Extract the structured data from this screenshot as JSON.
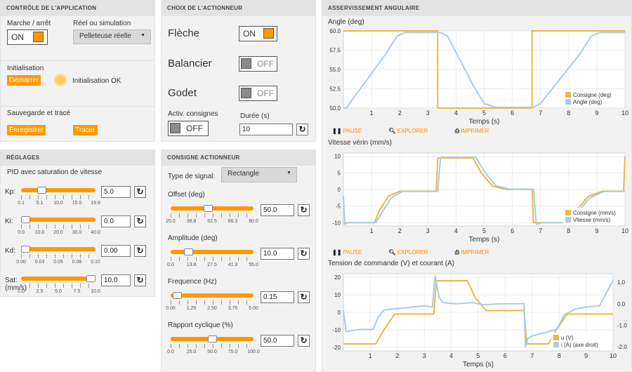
{
  "controle": {
    "title": "CONTRÔLE DE L'APPLICATION",
    "marche_label": "Marche / arrêt",
    "toggle_on": "ON",
    "reel_label": "Réel ou simulation",
    "reel_value": "Pelleteuse réelle",
    "init_label": "Initialisation",
    "demarrer": "Démarrer",
    "init_status": "Initialisation OK",
    "sauvegarde_label": "Sauvegarde et tracé",
    "enregistrer": "Enregistrer",
    "tracer": "Tracer"
  },
  "choix": {
    "title": "CHOIX DE L'ACTIONNEUR",
    "fleche": "Flèche",
    "fleche_state": "ON",
    "balancier": "Balancier",
    "balancier_state": "OFF",
    "godet": "Godet",
    "godet_state": "OFF",
    "activ_label": "Activ. consignes",
    "activ_state": "OFF",
    "duree_label": "Durée (s)",
    "duree_value": "10"
  },
  "reglages": {
    "title": "RÉGLAGES",
    "subtitle": "PID avec saturation de vitesse",
    "params": [
      {
        "label": "Kp:",
        "value": "5.0",
        "ticks": [
          "0.1",
          "5.1",
          "10.0",
          "15.0",
          "19.9"
        ],
        "level": 0.25
      },
      {
        "label": "Ki:",
        "value": "0.0",
        "ticks": [
          "0.0",
          "10.0",
          "20.0",
          "30.0",
          "40.0"
        ],
        "level": 0.0
      },
      {
        "label": "Kd:",
        "value": "0.00",
        "ticks": [
          "0.00",
          "0.03",
          "0.05",
          "0.08",
          "0.10"
        ],
        "level": 0.0
      },
      {
        "label": "Sat:",
        "label2": "(mm/s)",
        "value": "10.0",
        "ticks": [
          "0.0",
          "2.5",
          "5.0",
          "7.5",
          "10.0"
        ],
        "level": 1.0
      }
    ]
  },
  "consigne": {
    "title": "CONSIGNE ACTIONNEUR",
    "type_label": "Type de signal:",
    "type_value": "Rectangle",
    "params": [
      {
        "label": "Offset (deg)",
        "value": "50.0",
        "ticks": [
          "25.0",
          "38.8",
          "52.5",
          "66.3",
          "80.0"
        ],
        "level": 0.45
      },
      {
        "label": "Amplitude (deg)",
        "value": "10.0",
        "ticks": [
          "0.0",
          "13.8",
          "27.5",
          "41.3",
          "55.0"
        ],
        "level": 0.18
      },
      {
        "label": "Frequence (Hz)",
        "value": "0.15",
        "ticks": [
          "0.00",
          "1.25",
          "2.50",
          "3.75",
          "5.00"
        ],
        "level": 0.03
      },
      {
        "label": "Rapport cyclique (%)",
        "value": "50.0",
        "ticks": [
          "0.0",
          "25.0",
          "50.0",
          "75.0",
          "100.0"
        ],
        "level": 0.5
      }
    ]
  },
  "asserv": {
    "title": "ASSERVISSEMENT ANGULAIRE",
    "tools": {
      "pause": "PAUSE",
      "explorer": "EXPLORER",
      "imprimer": "IMPRIMER"
    }
  },
  "colors": {
    "orange": "#ff9800",
    "consigne": "#e8b84a",
    "mesure": "#a9cbe8"
  },
  "chart_data": [
    {
      "type": "line",
      "title": "Angle (deg)",
      "xlabel": "Temps (s)",
      "ylabel": "",
      "xlim": [
        0,
        10
      ],
      "ylim": [
        50,
        60
      ],
      "yticks": [
        "50.0",
        "52.5",
        "55.0",
        "57.5",
        "60.0"
      ],
      "xticks": [
        "1",
        "2",
        "3",
        "4",
        "5",
        "6",
        "7",
        "8",
        "9",
        "10"
      ],
      "legend": "bottom-right",
      "series": [
        {
          "name": "Consigne (deg)",
          "color": "#e8b84a",
          "x": [
            0,
            3.35,
            3.35,
            6.7,
            6.7,
            10
          ],
          "y": [
            60,
            60,
            50,
            50,
            60,
            60
          ]
        },
        {
          "name": "Angle (deg)",
          "color": "#a9cbe8",
          "x": [
            0,
            0.1,
            1.5,
            1.9,
            2.2,
            3.45,
            3.7,
            4.6,
            5.0,
            5.4,
            6.75,
            7.0,
            8.4,
            8.8,
            9.1,
            10
          ],
          "y": [
            50,
            50,
            57,
            59.3,
            59.8,
            59.8,
            59.3,
            53,
            50.6,
            50.1,
            50.1,
            50.6,
            57,
            59.3,
            59.8,
            59.8
          ]
        }
      ]
    },
    {
      "type": "line",
      "title": "Vitesse vérin (mm/s)",
      "xlabel": "Temps (s)",
      "ylabel": "",
      "xlim": [
        0,
        10
      ],
      "ylim": [
        -11,
        11
      ],
      "yticks": [
        "-10",
        "-5",
        "0",
        "5",
        "10"
      ],
      "xticks": [
        "1",
        "2",
        "3",
        "4",
        "5",
        "6",
        "7",
        "8",
        "9",
        "10"
      ],
      "legend": "bottom-right",
      "series": [
        {
          "name": "Consigne (mm/s)",
          "color": "#e8b84a",
          "x": [
            0,
            0.1,
            1.1,
            1.3,
            1.6,
            2.0,
            3.3,
            3.35,
            3.5,
            4.6,
            4.9,
            5.3,
            5.8,
            6.7,
            6.75,
            7.0,
            8.0,
            8.3,
            8.7,
            9.2,
            9.95,
            10
          ],
          "y": [
            -10,
            -10,
            -10,
            -6,
            -2,
            -0.5,
            -0.5,
            9.5,
            9.5,
            9.5,
            5,
            1,
            0,
            0,
            -10,
            -10,
            -10,
            -6,
            -2,
            -0.5,
            -0.5,
            10
          ]
        },
        {
          "name": "Vitesse (mm/s)",
          "color": "#a9cbe8",
          "x": [
            0,
            0.05,
            0.15,
            1.15,
            1.4,
            1.7,
            2.1,
            3.35,
            3.45,
            3.6,
            4.7,
            5.0,
            5.4,
            5.9,
            6.75,
            6.85,
            7.1,
            8.05,
            8.35,
            8.75,
            9.25,
            10
          ],
          "y": [
            -2,
            -10.5,
            -10,
            -10,
            -6.5,
            -2.5,
            -0.6,
            -0.6,
            9.8,
            9.7,
            9.7,
            5.5,
            1.2,
            0.1,
            0.1,
            -10.5,
            -10,
            -10,
            -6.5,
            -2.5,
            -0.6,
            -0.6
          ]
        }
      ]
    },
    {
      "type": "line",
      "title": "Tension de commande (V) et courant (A)",
      "xlabel": "Temps (s)",
      "ylabel": "",
      "xlim": [
        0,
        10
      ],
      "ylim": [
        -22,
        22
      ],
      "ylim_right": [
        -2.2,
        1.4
      ],
      "yticks": [
        "-20",
        "-10",
        "0",
        "10",
        "20"
      ],
      "yticks_right": [
        "-2.0",
        "-1.0",
        "0.0",
        "1.0"
      ],
      "xticks": [
        "1",
        "2",
        "3",
        "4",
        "5",
        "6",
        "7",
        "8",
        "9",
        "10"
      ],
      "legend": "bottom-right",
      "series": [
        {
          "name": "u (V)",
          "color": "#e8b84a",
          "axis": "left",
          "x": [
            0,
            0.1,
            1.2,
            1.5,
            1.9,
            3.35,
            3.45,
            4.6,
            4.9,
            5.3,
            6.7,
            6.8,
            7.6,
            7.9,
            8.3,
            10
          ],
          "y": [
            -18,
            -18,
            -18,
            -10,
            -1,
            -1,
            18,
            18,
            8,
            1,
            1,
            -18,
            -18,
            -10,
            -1,
            -1
          ]
        },
        {
          "name": "i (A) (axe droit)",
          "color": "#a9cbe8",
          "axis": "right",
          "x": [
            0,
            0.1,
            0.6,
            1.1,
            1.3,
            1.5,
            1.8,
            2.2,
            2.6,
            3.0,
            3.3,
            3.4,
            3.55,
            3.7,
            4.2,
            4.8,
            5.2,
            5.8,
            6.3,
            6.7,
            6.75,
            6.85,
            7.0,
            7.3,
            7.6,
            7.9,
            8.2,
            8.6,
            9.0,
            9.5,
            10
          ],
          "y": [
            -0.3,
            -1.3,
            -1.2,
            -1.2,
            -0.6,
            -0.3,
            -0.25,
            -0.2,
            -0.15,
            -0.1,
            -0.15,
            1.3,
            0.3,
            0.05,
            0.0,
            0.05,
            -0.05,
            0.0,
            0.0,
            0.0,
            -2.0,
            -1.6,
            -1.5,
            -1.4,
            -1.3,
            -1.2,
            -0.5,
            -0.25,
            -0.15,
            -0.1,
            1.1
          ]
        }
      ]
    }
  ]
}
